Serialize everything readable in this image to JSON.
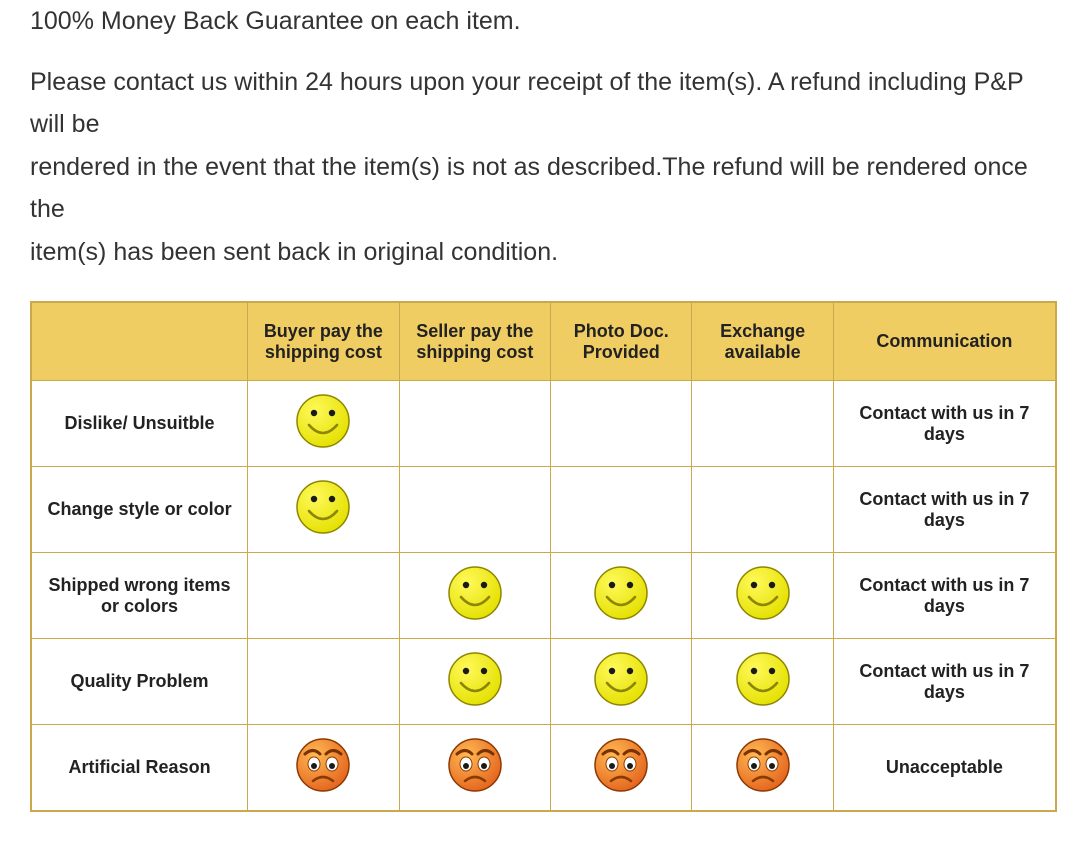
{
  "intro": {
    "line1": "100% Money Back Guarantee on each item.",
    "line2": "Please contact us within 24 hours upon your receipt of the item(s). A refund including P&P will be",
    "line3": "rendered in the event that the item(s) is not as described.The refund will be rendered once the",
    "line4": "item(s) has been sent back in original condition."
  },
  "table": {
    "header_bg": "#f0cd63",
    "border_color": "#c9a94b",
    "text_color": "#222222",
    "columns": [
      "",
      "Buyer pay the shipping cost",
      "Seller pay the shipping cost",
      "Photo Doc. Provided",
      "Exchange available",
      "Communication"
    ],
    "rows": [
      {
        "label": "Dislike/ Unsuitble",
        "cells": [
          "happy",
          "",
          "",
          "",
          ""
        ],
        "comm": "Contact with us in 7 days"
      },
      {
        "label": "Change style or color",
        "cells": [
          "happy",
          "",
          "",
          "",
          ""
        ],
        "comm": "Contact with us in 7 days"
      },
      {
        "label": "Shipped wrong items or colors",
        "cells": [
          "",
          "happy",
          "happy",
          "happy",
          ""
        ],
        "comm": "Contact with us in 7 days"
      },
      {
        "label": "Quality Problem",
        "cells": [
          "",
          "happy",
          "happy",
          "happy",
          ""
        ],
        "comm": "Contact with us in 7 days"
      },
      {
        "label": "Artificial Reason",
        "cells": [
          "sad",
          "sad",
          "sad",
          "sad",
          ""
        ],
        "comm": "Unacceptable"
      }
    ]
  },
  "icons": {
    "happy": {
      "face_fill_top": "#fff95a",
      "face_fill_bot": "#e4e000",
      "stroke": "#8e8600",
      "eye": "#1a1a1a"
    },
    "sad": {
      "face_fill_top": "#ffb953",
      "face_fill_bot": "#e4641f",
      "stroke": "#8c3a00",
      "eye_white": "#ffffff",
      "eye_pupil": "#1a1a1a",
      "brow": "#7a3200"
    }
  }
}
